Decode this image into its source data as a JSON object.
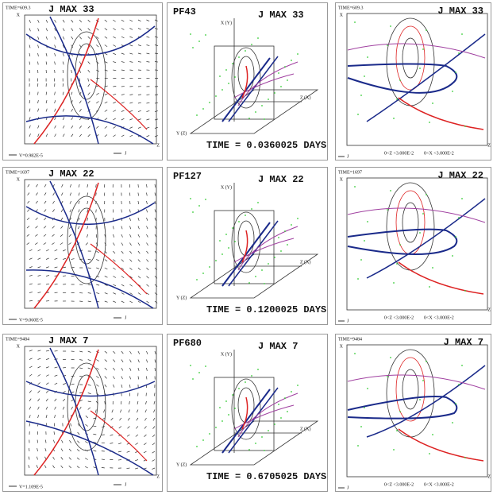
{
  "panels": [
    {
      "time": "TIME=609.3",
      "title": "J MAX 33",
      "x_axis": "X",
      "z_axis": "Z",
      "velocity": "V=0.982E-5",
      "legend": "J"
    },
    {
      "run": "PF43",
      "title": "J MAX 33",
      "vertical_axis": "X (Y)",
      "right_axis": "Z (X)",
      "depth_axis": "Y (Z)",
      "elapsed": "TIME = 0.0360025 DAYS"
    },
    {
      "time": "TIME=609.3",
      "title": "J MAX 33",
      "x_axis": "X",
      "legend": "J",
      "z_range": "0<Z <3.000E-2",
      "x_range": "0<X <3.000E-2",
      "z_axis": "Z"
    },
    {
      "time": "TIME=1697",
      "title": "J MAX 22",
      "x_axis": "X",
      "velocity": "V=9.060E-5",
      "legend": "J"
    },
    {
      "run": "PF127",
      "title": "J MAX 22",
      "vertical_axis": "X (Y)",
      "right_axis": "Z (X)",
      "depth_axis": "Y (Z)",
      "elapsed": "TIME = 0.1200025 DAYS"
    },
    {
      "time": "TIME=1697",
      "title": "J MAX 22",
      "x_axis": "X",
      "legend": "J",
      "z_range": "0<Z <3.000E-2",
      "x_range": "0<X <3.000E-2",
      "z_axis": "Z"
    },
    {
      "time": "TIME=9484",
      "title": "J MAX 7",
      "x_axis": "X",
      "z_axis": "Z",
      "velocity": "V=1.109E-5",
      "legend": "J"
    },
    {
      "run": "PF680",
      "title": "J MAX 7",
      "vertical_axis": "X (Y)",
      "right_axis": "Z (X)",
      "depth_axis": "Y (Z)",
      "elapsed": "TIME = 0.6705025 DAYS"
    },
    {
      "time": "TIME=9484",
      "title": "J MAX 7",
      "x_axis": "X",
      "legend": "J",
      "z_range": "0<Z <3.000E-2",
      "x_range": "0<X <3.000E-2",
      "z_axis": "Z"
    }
  ]
}
